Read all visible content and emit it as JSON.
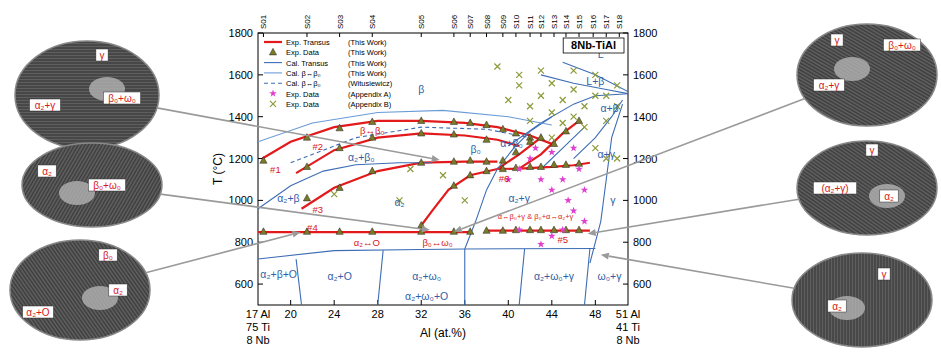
{
  "chart_data": {
    "type": "phase_diagram",
    "title": "8Nb-TiAl",
    "xlabel": "Al (at.%)",
    "ylabel": "T (°C)",
    "xlim": [
      17,
      51
    ],
    "ylim": [
      500,
      1800
    ],
    "xticks": [
      20,
      24,
      28,
      32,
      36,
      40,
      44,
      48
    ],
    "yticks": [
      600,
      800,
      1000,
      1200,
      1400,
      1600,
      1800
    ],
    "top_ticks": [
      {
        "value": 17.5,
        "label": "S01"
      },
      {
        "value": 21.5,
        "label": "S02"
      },
      {
        "value": 24.5,
        "label": "S03"
      },
      {
        "value": 27.5,
        "label": "S04"
      },
      {
        "value": 32,
        "label": "S05"
      },
      {
        "value": 35,
        "label": "S06"
      },
      {
        "value": 36.5,
        "label": "S07"
      },
      {
        "value": 38,
        "label": "S08"
      },
      {
        "value": 39.5,
        "label": "S09"
      },
      {
        "value": 40.7,
        "label": "S10"
      },
      {
        "value": 42,
        "label": "S11"
      },
      {
        "value": 43,
        "label": "S12"
      },
      {
        "value": 44.2,
        "label": "S13"
      },
      {
        "value": 45.3,
        "label": "S14"
      },
      {
        "value": 46.5,
        "label": "S15"
      },
      {
        "value": 47.8,
        "label": "S16"
      },
      {
        "value": 49,
        "label": "S17"
      },
      {
        "value": 50.2,
        "label": "S18"
      }
    ],
    "x_ends": {
      "left": [
        "17 Al",
        "75 Ti",
        "8 Nb"
      ],
      "right": [
        "51 Al",
        "41 Ti",
        "8 Nb"
      ]
    },
    "legend": "top-left",
    "series": [
      {
        "name": "Exp. Transus",
        "source": "(This Work)",
        "type": "line",
        "color": "#e31a1c",
        "line_style": "solid",
        "lines": [
          {
            "x": [
              17.4,
              20,
              24,
              28,
              32,
              36,
              39,
              42,
              44
            ],
            "values": [
              1200,
              1280,
              1350,
              1380,
              1380,
              1370,
              1350,
              1310,
              1270
            ]
          },
          {
            "x": [
              20.5,
              24,
              28,
              32,
              36,
              39,
              41
            ],
            "values": [
              1130,
              1240,
              1300,
              1320,
              1310,
              1290,
              1260
            ]
          },
          {
            "x": [
              21,
              24,
              28,
              32,
              36,
              39
            ],
            "values": [
              960,
              1060,
              1140,
              1180,
              1185,
              1185
            ]
          },
          {
            "x": [
              32,
              33,
              34.5,
              36.5,
              39
            ],
            "values": [
              880,
              950,
              1050,
              1120,
              1150
            ]
          },
          {
            "x": [
              39,
              41,
              44,
              46,
              47.5
            ],
            "values": [
              1150,
              1152,
              1160,
              1168,
              1180
            ]
          },
          {
            "x": [
              39,
              41,
              43
            ],
            "values": [
              1150,
              1220,
              1300
            ]
          },
          {
            "x": [
              41,
              43,
              45,
              46.5
            ],
            "values": [
              1152,
              1220,
              1320,
              1380
            ]
          },
          {
            "x": [
              17,
              36.5
            ],
            "values": [
              848,
              848
            ]
          },
          {
            "x": [
              38,
              47.5
            ],
            "values": [
              855,
              855
            ]
          }
        ]
      },
      {
        "name": "Exp. Data",
        "source": "(This Work)",
        "type": "scatter",
        "color": "#7a7a28",
        "marker": "triangle",
        "x": [
          17.5,
          17.5,
          21.5,
          21.5,
          21.5,
          21.5,
          24.5,
          24.5,
          24.5,
          24.5,
          27.5,
          27.5,
          27.5,
          27.5,
          32,
          32,
          32,
          32,
          32,
          35,
          35,
          35,
          35,
          35,
          36.5,
          36.5,
          36.5,
          36.5,
          38,
          38,
          38,
          38,
          38,
          39.5,
          39.5,
          39.5,
          39.5,
          40.7,
          40.7,
          40.7,
          40.7,
          42,
          42,
          42,
          42,
          43,
          43,
          43,
          44.2,
          44.2,
          44.2,
          45.3,
          45.3,
          45.3,
          46.5,
          46.5,
          46.5
        ],
        "values": [
          1190,
          850,
          1300,
          1160,
          1010,
          850,
          1345,
          1250,
          1060,
          850,
          1375,
          1300,
          1140,
          850,
          1380,
          1320,
          1180,
          880,
          850,
          1375,
          1315,
          1185,
          1070,
          850,
          1370,
          1190,
          1120,
          850,
          1360,
          1290,
          1185,
          1140,
          855,
          1340,
          1190,
          1150,
          855,
          1320,
          1230,
          1155,
          858,
          1300,
          1280,
          1160,
          858,
          1300,
          1160,
          858,
          1270,
          1170,
          858,
          1330,
          1170,
          858,
          1380,
          1175,
          858
        ]
      },
      {
        "name": "Cal. Transus",
        "source": "(This Work)",
        "type": "line",
        "color": "#3d6db5",
        "line_style": "solid",
        "lines": [
          {
            "x": [
              40,
              43,
              46,
              48,
              51
            ],
            "values": [
              1260,
              1370,
              1460,
              1500,
              1510
            ]
          },
          {
            "x": [
              46,
              48,
              49.5,
              50.5
            ],
            "values": [
              1200,
              1300,
              1400,
              1480
            ]
          },
          {
            "x": [
              47.5,
              48.5,
              49,
              49.5,
              50.5
            ],
            "values": [
              700,
              900,
              1100,
              1300,
              1460
            ]
          },
          {
            "x": [
              17,
              20,
              23,
              26,
              30,
              33
            ],
            "values": [
              960,
              1070,
              1140,
              1170,
              1180,
              1180
            ]
          },
          {
            "x": [
              17,
              24,
              32,
              36,
              48
            ],
            "values": [
              720,
              760,
              765,
              768,
              770
            ]
          },
          {
            "x": [
              21,
              20.5
            ],
            "values": [
              500,
              720
            ]
          },
          {
            "x": [
              28,
              28.5
            ],
            "values": [
              500,
              762
            ]
          },
          {
            "x": [
              36,
              36
            ],
            "values": [
              500,
              768
            ]
          },
          {
            "x": [
              41,
              41.5
            ],
            "values": [
              500,
              769
            ]
          },
          {
            "x": [
              47,
              47.5
            ],
            "values": [
              500,
              770
            ]
          },
          {
            "x": [
              36,
              37,
              38,
              39
            ],
            "values": [
              768,
              900,
              1050,
              1150
            ]
          },
          {
            "x": [
              39,
              40.5,
              42,
              44
            ],
            "values": [
              1150,
              1250,
              1330,
              1400
            ]
          },
          {
            "x": [
              43,
              45,
              47
            ],
            "values": [
              1150,
              1250,
              1350
            ]
          },
          {
            "x": [
              43,
              46,
              49,
              51
            ],
            "values": [
              1600,
              1560,
              1530,
              1510
            ]
          },
          {
            "x": [
              45,
              48,
              51
            ],
            "values": [
              1660,
              1600,
              1520
            ]
          }
        ]
      },
      {
        "name": "Cal. β↔β₀",
        "source": "(This Work)",
        "type": "line",
        "color": "#6a9bd8",
        "line_style": "solid",
        "lines": [
          {
            "x": [
              17,
              22,
              28,
              34,
              40,
              44
            ],
            "values": [
              1280,
              1370,
              1420,
              1430,
              1400,
              1360
            ]
          }
        ]
      },
      {
        "name": "Cal. β↔β₀",
        "source": "(Witusiewicz)",
        "type": "line",
        "color": "#3d6db5",
        "line_style": "dashed",
        "lines": [
          {
            "x": [
              20,
              26,
              32,
              38,
              42
            ],
            "values": [
              1180,
              1300,
              1350,
              1340,
              1300
            ]
          }
        ]
      },
      {
        "name": "Exp. Data",
        "source": "(Appendix A)",
        "type": "scatter",
        "color": "#e040d0",
        "marker": "star",
        "x": [
          40,
          41,
          42,
          42.5,
          43,
          44,
          44,
          45,
          45.5,
          46,
          46,
          46.5,
          47,
          47,
          45,
          44,
          43,
          41
        ],
        "values": [
          1100,
          1150,
          1200,
          1250,
          1100,
          1050,
          1230,
          1100,
          1000,
          950,
          1250,
          1150,
          900,
          1050,
          860,
          830,
          790,
          860
        ]
      },
      {
        "name": "Exp. Data",
        "source": "(Appendix B)",
        "type": "scatter",
        "color": "#8c9a3a",
        "marker": "x",
        "x": [
          40,
          41,
          41,
          42,
          42,
          43,
          44,
          44,
          45,
          46,
          46,
          47,
          47,
          48,
          48,
          49,
          49,
          50,
          50,
          44,
          46,
          45,
          48,
          43,
          39,
          49,
          50,
          31,
          34,
          36,
          24,
          30
        ],
        "values": [
          1480,
          1550,
          1600,
          1450,
          1380,
          1500,
          1420,
          1560,
          1480,
          1400,
          1530,
          1350,
          1450,
          1500,
          1600,
          1500,
          1380,
          1450,
          1550,
          1300,
          1620,
          1370,
          1250,
          1620,
          1640,
          1200,
          1200,
          1150,
          1120,
          1000,
          1030,
          1000
        ]
      }
    ],
    "annotations": [
      {
        "text": "L",
        "x": 48.5,
        "y": 1700,
        "color": "#2f5fa8"
      },
      {
        "text": "L+β",
        "x": 48,
        "y": 1570,
        "color": "#2f5fa8"
      },
      {
        "text": "β",
        "x": 32,
        "y": 1530,
        "color": "#2f5fa8"
      },
      {
        "text": "α+β",
        "x": 49.3,
        "y": 1440,
        "color": "#2f5fa8"
      },
      {
        "text": "α+γ",
        "x": 49,
        "y": 1220,
        "color": "#2f5fa8"
      },
      {
        "text": "γ",
        "x": 49.6,
        "y": 1000,
        "color": "#2f5fa8"
      },
      {
        "text": "β₀",
        "x": 37,
        "y": 1245,
        "color": "#2f5fa8"
      },
      {
        "text": "α+β₀",
        "x": 40.3,
        "y": 1275,
        "color": "#2f5fa8"
      },
      {
        "text": "α₂+β₀",
        "x": 26.5,
        "y": 1205,
        "color": "#2f5fa8"
      },
      {
        "text": "α₂+β",
        "x": 19.8,
        "y": 1010,
        "color": "#2f5fa8"
      },
      {
        "text": "α₂",
        "x": 30,
        "y": 990,
        "color": "#2f5fa8"
      },
      {
        "text": "α₂+γ",
        "x": 41,
        "y": 1010,
        "color": "#2f5fa8"
      },
      {
        "text": "α₂+β+O",
        "x": 18.9,
        "y": 650,
        "color": "#2f5fa8"
      },
      {
        "text": "α₂+O",
        "x": 24.5,
        "y": 640,
        "color": "#2f5fa8"
      },
      {
        "text": "α₂+ω₀",
        "x": 32.5,
        "y": 640,
        "color": "#2f5fa8"
      },
      {
        "text": "α₂+ω₀+γ",
        "x": 44.2,
        "y": 640,
        "color": "#2f5fa8"
      },
      {
        "text": "ω₀+γ",
        "x": 49.3,
        "y": 640,
        "color": "#2f5fa8"
      },
      {
        "text": "α₂+ω₀+O",
        "x": 32.5,
        "y": 545,
        "color": "#2f5fa8"
      },
      {
        "text": "β↔β₀",
        "x": 27.5,
        "y": 1335,
        "color": "#d7191c"
      },
      {
        "text": "#1",
        "x": 18.6,
        "y": 1150,
        "color": "#d7191c"
      },
      {
        "text": "#2",
        "x": 22.5,
        "y": 1262,
        "color": "#d7191c"
      },
      {
        "text": "#3",
        "x": 22.5,
        "y": 960,
        "color": "#d7191c"
      },
      {
        "text": "#4",
        "x": 22,
        "y": 875,
        "color": "#d7191c"
      },
      {
        "text": "#5",
        "x": 45,
        "y": 815,
        "color": "#d7191c"
      },
      {
        "text": "#6",
        "x": 39.6,
        "y": 1105,
        "color": "#d7191c"
      },
      {
        "text": "α₂↔O",
        "x": 27,
        "y": 800,
        "color": "#d7191c"
      },
      {
        "text": "β₀↔ω₀",
        "x": 33.5,
        "y": 800,
        "color": "#d7191c"
      },
      {
        "text": "α↔β₀+γ & β₀+α↔α₂+γ",
        "x": 42.5,
        "y": 930,
        "color": "#d7191c"
      }
    ]
  },
  "micrographs": [
    {
      "labels": [
        "γ",
        "β₀+ω₀",
        "α₂+γ"
      ],
      "target": [
        33.7,
        1193
      ]
    },
    {
      "labels": [
        "α₂",
        "β₀+ω₀"
      ],
      "target": [
        32.8,
        858
      ]
    },
    {
      "labels": [
        "β₀",
        "α₂",
        "α₂+O"
      ],
      "target": [
        20.9,
        848
      ]
    },
    {
      "labels": [
        "γ",
        "β₀+ω₀",
        "α₂+γ"
      ],
      "target": [
        35,
        850
      ]
    },
    {
      "labels": [
        "γ",
        "(α₂+γ)",
        "α₂"
      ],
      "target": [
        47.3,
        840
      ]
    },
    {
      "labels": [
        "γ",
        "α₂"
      ],
      "target": [
        48.5,
        740
      ]
    }
  ]
}
